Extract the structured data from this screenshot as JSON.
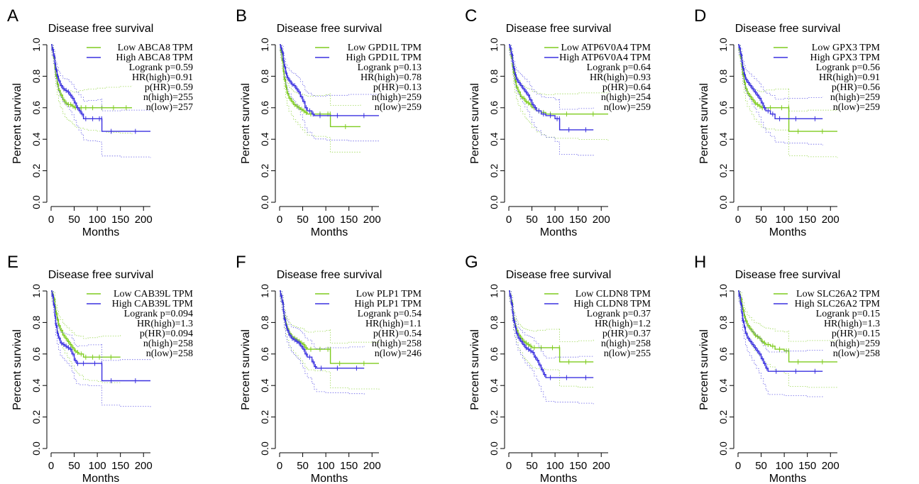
{
  "chart_data": [
    {
      "panel_label": "A",
      "type": "line",
      "title": "Disease free survival",
      "xlabel": "Months",
      "ylabel": "Percent survival",
      "xlim": [
        0,
        215
      ],
      "ylim": [
        0,
        1.0
      ],
      "x_ticks": [
        "0",
        "50",
        "100",
        "150",
        "200"
      ],
      "y_ticks": [
        "0.0",
        "0.2",
        "0.4",
        "0.6",
        "0.8",
        "1.0"
      ],
      "legend": [
        "Low ABCA8 TPM",
        "High ABCA8 TPM"
      ],
      "stats": [
        "Logrank p=0.59",
        "HR(high)=0.91",
        "p(HR)=0.59",
        "n(high)=255",
        "n(low)=257"
      ],
      "series": [
        {
          "name": "Low ABCA8 TPM",
          "color": "#7fcc1f",
          "x": [
            0,
            2,
            5,
            8,
            10,
            13,
            16,
            20,
            25,
            30,
            35,
            40,
            45,
            50,
            55,
            60,
            70,
            80,
            100,
            120,
            150,
            175
          ],
          "y": [
            1.0,
            0.97,
            0.92,
            0.85,
            0.8,
            0.75,
            0.71,
            0.68,
            0.65,
            0.63,
            0.62,
            0.62,
            0.61,
            0.6,
            0.6,
            0.6,
            0.6,
            0.6,
            0.6,
            0.6,
            0.6,
            0.6
          ]
        },
        {
          "name": "High ABCA8 TPM",
          "color": "#3a30e0",
          "x": [
            0,
            2,
            5,
            8,
            10,
            13,
            16,
            20,
            25,
            30,
            35,
            40,
            45,
            50,
            55,
            60,
            65,
            70,
            80,
            100,
            109,
            110,
            150,
            215
          ],
          "y": [
            1.0,
            0.97,
            0.93,
            0.88,
            0.84,
            0.8,
            0.77,
            0.74,
            0.72,
            0.71,
            0.7,
            0.68,
            0.66,
            0.63,
            0.6,
            0.58,
            0.56,
            0.53,
            0.53,
            0.53,
            0.53,
            0.45,
            0.45,
            0.45
          ]
        }
      ]
    },
    {
      "panel_label": "B",
      "type": "line",
      "title": "Disease free survival",
      "xlabel": "Months",
      "ylabel": "Percent survival",
      "xlim": [
        0,
        215
      ],
      "ylim": [
        0,
        1.0
      ],
      "x_ticks": [
        "0",
        "50",
        "100",
        "150",
        "200"
      ],
      "y_ticks": [
        "0.0",
        "0.2",
        "0.4",
        "0.6",
        "0.8",
        "1.0"
      ],
      "legend": [
        "Low GPD1L TPM",
        "High GPD1L TPM"
      ],
      "stats": [
        "Logrank p=0.13",
        "HR(high)=0.78",
        "p(HR)=0.13",
        "n(high)=259",
        "n(low)=259"
      ],
      "series": [
        {
          "name": "Low GPD1L TPM",
          "color": "#7fcc1f",
          "x": [
            0,
            2,
            5,
            8,
            10,
            13,
            16,
            20,
            25,
            30,
            35,
            40,
            45,
            50,
            55,
            60,
            75,
            100,
            109,
            110,
            175
          ],
          "y": [
            1.0,
            0.96,
            0.9,
            0.83,
            0.78,
            0.73,
            0.69,
            0.66,
            0.64,
            0.62,
            0.61,
            0.6,
            0.59,
            0.58,
            0.57,
            0.56,
            0.56,
            0.56,
            0.56,
            0.48,
            0.48
          ]
        },
        {
          "name": "High GPD1L TPM",
          "color": "#3a30e0",
          "x": [
            0,
            2,
            5,
            8,
            10,
            13,
            16,
            20,
            25,
            30,
            35,
            40,
            45,
            50,
            55,
            60,
            70,
            75,
            100,
            150,
            215
          ],
          "y": [
            1.0,
            0.98,
            0.95,
            0.9,
            0.86,
            0.82,
            0.79,
            0.77,
            0.75,
            0.74,
            0.72,
            0.7,
            0.67,
            0.64,
            0.6,
            0.58,
            0.56,
            0.55,
            0.55,
            0.55,
            0.55
          ]
        }
      ]
    },
    {
      "panel_label": "C",
      "type": "line",
      "title": "Disease free survival",
      "xlabel": "Months",
      "ylabel": "Percent survival",
      "xlim": [
        0,
        215
      ],
      "ylim": [
        0,
        1.0
      ],
      "x_ticks": [
        "0",
        "50",
        "100",
        "150",
        "200"
      ],
      "y_ticks": [
        "0.0",
        "0.2",
        "0.4",
        "0.6",
        "0.8",
        "1.0"
      ],
      "legend": [
        "Low ATP6V0A4 TPM",
        "High ATP6V0A4 TPM"
      ],
      "stats": [
        "Logrank p=0.64",
        "HR(high)=0.93",
        "p(HR)=0.64",
        "n(high)=254",
        "n(low)=259"
      ],
      "series": [
        {
          "name": "Low ATP6V0A4 TPM",
          "color": "#7fcc1f",
          "x": [
            0,
            2,
            5,
            8,
            10,
            13,
            16,
            20,
            25,
            30,
            35,
            40,
            45,
            50,
            60,
            70,
            80,
            100,
            150,
            215
          ],
          "y": [
            1.0,
            0.97,
            0.92,
            0.86,
            0.82,
            0.77,
            0.73,
            0.7,
            0.67,
            0.66,
            0.64,
            0.63,
            0.62,
            0.6,
            0.58,
            0.57,
            0.56,
            0.56,
            0.56,
            0.56
          ]
        },
        {
          "name": "High ATP6V0A4 TPM",
          "color": "#3a30e0",
          "x": [
            0,
            2,
            5,
            8,
            10,
            13,
            16,
            20,
            25,
            30,
            35,
            40,
            45,
            50,
            55,
            60,
            70,
            80,
            100,
            109,
            110,
            150,
            183
          ],
          "y": [
            1.0,
            0.98,
            0.94,
            0.89,
            0.85,
            0.81,
            0.78,
            0.76,
            0.74,
            0.72,
            0.7,
            0.68,
            0.65,
            0.62,
            0.6,
            0.58,
            0.56,
            0.55,
            0.53,
            0.53,
            0.46,
            0.46,
            0.46
          ]
        }
      ]
    },
    {
      "panel_label": "D",
      "type": "line",
      "title": "Disease free survival",
      "xlabel": "Months",
      "ylabel": "Percent survival",
      "xlim": [
        0,
        215
      ],
      "ylim": [
        0,
        1.0
      ],
      "x_ticks": [
        "0",
        "50",
        "100",
        "150",
        "200"
      ],
      "y_ticks": [
        "0.0",
        "0.2",
        "0.4",
        "0.6",
        "0.8",
        "1.0"
      ],
      "legend": [
        "Low GPX3 TPM",
        "High GPX3 TPM"
      ],
      "stats": [
        "Logrank p=0.56",
        "HR(high)=0.91",
        "p(HR)=0.56",
        "n(high)=259",
        "n(low)=259"
      ],
      "series": [
        {
          "name": "Low GPX3 TPM",
          "color": "#7fcc1f",
          "x": [
            0,
            2,
            5,
            8,
            10,
            13,
            16,
            20,
            25,
            30,
            35,
            40,
            45,
            50,
            55,
            60,
            80,
            109,
            110,
            150,
            215
          ],
          "y": [
            1.0,
            0.97,
            0.92,
            0.86,
            0.81,
            0.76,
            0.72,
            0.69,
            0.67,
            0.65,
            0.63,
            0.62,
            0.61,
            0.6,
            0.6,
            0.6,
            0.6,
            0.6,
            0.45,
            0.45,
            0.45
          ]
        },
        {
          "name": "High GPX3 TPM",
          "color": "#3a30e0",
          "x": [
            0,
            2,
            5,
            8,
            10,
            13,
            16,
            20,
            25,
            30,
            35,
            40,
            45,
            50,
            55,
            60,
            70,
            80,
            100,
            150,
            183
          ],
          "y": [
            1.0,
            0.98,
            0.94,
            0.89,
            0.85,
            0.81,
            0.78,
            0.76,
            0.74,
            0.72,
            0.7,
            0.68,
            0.66,
            0.63,
            0.6,
            0.58,
            0.56,
            0.53,
            0.53,
            0.53,
            0.53
          ]
        }
      ]
    },
    {
      "panel_label": "E",
      "type": "line",
      "title": "Disease free survival",
      "xlabel": "Months",
      "ylabel": "Percent survival",
      "xlim": [
        0,
        215
      ],
      "ylim": [
        0,
        1.0
      ],
      "x_ticks": [
        "0",
        "50",
        "100",
        "150",
        "200"
      ],
      "y_ticks": [
        "0.0",
        "0.2",
        "0.4",
        "0.6",
        "0.8",
        "1.0"
      ],
      "legend": [
        "Low CAB39L TPM",
        "High CAB39L TPM"
      ],
      "stats": [
        "Logrank p=0.094",
        "HR(high)=1.3",
        "p(HR)=0.094",
        "n(high)=258",
        "n(low)=258"
      ],
      "series": [
        {
          "name": "Low CAB39L TPM",
          "color": "#7fcc1f",
          "x": [
            0,
            2,
            5,
            8,
            10,
            13,
            16,
            20,
            25,
            30,
            35,
            40,
            45,
            50,
            55,
            60,
            70,
            80,
            100,
            109,
            150
          ],
          "y": [
            1.0,
            0.98,
            0.95,
            0.9,
            0.86,
            0.82,
            0.78,
            0.75,
            0.72,
            0.7,
            0.68,
            0.66,
            0.64,
            0.62,
            0.61,
            0.6,
            0.58,
            0.58,
            0.58,
            0.58,
            0.58
          ]
        },
        {
          "name": "High CAB39L TPM",
          "color": "#3a30e0",
          "x": [
            0,
            2,
            5,
            8,
            10,
            13,
            16,
            20,
            25,
            30,
            35,
            40,
            45,
            50,
            55,
            60,
            80,
            109,
            110,
            150,
            215
          ],
          "y": [
            1.0,
            0.97,
            0.91,
            0.84,
            0.78,
            0.73,
            0.7,
            0.67,
            0.66,
            0.65,
            0.64,
            0.63,
            0.6,
            0.56,
            0.54,
            0.54,
            0.54,
            0.54,
            0.43,
            0.43,
            0.43
          ]
        }
      ]
    },
    {
      "panel_label": "F",
      "type": "line",
      "title": "Disease free survival",
      "xlabel": "Months",
      "ylabel": "Percent survival",
      "xlim": [
        0,
        215
      ],
      "ylim": [
        0,
        1.0
      ],
      "x_ticks": [
        "0",
        "50",
        "100",
        "150",
        "200"
      ],
      "y_ticks": [
        "0.0",
        "0.2",
        "0.4",
        "0.6",
        "0.8",
        "1.0"
      ],
      "legend": [
        "Low PLP1 TPM",
        "High PLP1 TPM"
      ],
      "stats": [
        "Logrank p=0.54",
        "HR(high)=1.1",
        "p(HR)=0.54",
        "n(high)=258",
        "n(low)=246"
      ],
      "series": [
        {
          "name": "Low PLP1 TPM",
          "color": "#7fcc1f",
          "x": [
            0,
            2,
            5,
            8,
            10,
            13,
            16,
            20,
            25,
            30,
            35,
            40,
            45,
            50,
            55,
            60,
            75,
            100,
            109,
            110,
            150,
            215
          ],
          "y": [
            1.0,
            0.97,
            0.93,
            0.87,
            0.83,
            0.79,
            0.76,
            0.73,
            0.71,
            0.7,
            0.69,
            0.68,
            0.67,
            0.66,
            0.64,
            0.63,
            0.63,
            0.63,
            0.63,
            0.54,
            0.54,
            0.54
          ]
        },
        {
          "name": "High PLP1 TPM",
          "color": "#3a30e0",
          "x": [
            0,
            2,
            5,
            8,
            10,
            13,
            16,
            20,
            25,
            30,
            35,
            40,
            45,
            50,
            55,
            60,
            70,
            75,
            80,
            100,
            150,
            183
          ],
          "y": [
            1.0,
            0.97,
            0.93,
            0.87,
            0.82,
            0.78,
            0.75,
            0.72,
            0.7,
            0.69,
            0.68,
            0.67,
            0.65,
            0.63,
            0.6,
            0.58,
            0.55,
            0.52,
            0.51,
            0.51,
            0.51,
            0.51
          ]
        }
      ]
    },
    {
      "panel_label": "G",
      "type": "line",
      "title": "Disease free survival",
      "xlabel": "Months",
      "ylabel": "Percent survival",
      "xlim": [
        0,
        215
      ],
      "ylim": [
        0,
        1.0
      ],
      "x_ticks": [
        "0",
        "50",
        "100",
        "150",
        "200"
      ],
      "y_ticks": [
        "0.0",
        "0.2",
        "0.4",
        "0.6",
        "0.8",
        "1.0"
      ],
      "legend": [
        "Low CLDN8 TPM",
        "High CLDN8 TPM"
      ],
      "stats": [
        "Logrank p=0.37",
        "HR(high)=1.2",
        "p(HR)=0.37",
        "n(high)=258",
        "n(low)=255"
      ],
      "series": [
        {
          "name": "Low CLDN8 TPM",
          "color": "#7fcc1f",
          "x": [
            0,
            2,
            5,
            8,
            10,
            13,
            16,
            20,
            25,
            30,
            35,
            40,
            45,
            50,
            60,
            80,
            109,
            110,
            150,
            183
          ],
          "y": [
            1.0,
            0.97,
            0.93,
            0.87,
            0.82,
            0.78,
            0.75,
            0.72,
            0.7,
            0.68,
            0.67,
            0.66,
            0.65,
            0.64,
            0.64,
            0.64,
            0.64,
            0.55,
            0.55,
            0.55
          ]
        },
        {
          "name": "High CLDN8 TPM",
          "color": "#3a30e0",
          "x": [
            0,
            2,
            5,
            8,
            10,
            13,
            16,
            20,
            25,
            30,
            35,
            40,
            45,
            50,
            55,
            60,
            65,
            70,
            75,
            80,
            100,
            150,
            183
          ],
          "y": [
            1.0,
            0.97,
            0.92,
            0.86,
            0.81,
            0.77,
            0.73,
            0.7,
            0.68,
            0.66,
            0.64,
            0.63,
            0.62,
            0.61,
            0.58,
            0.56,
            0.53,
            0.5,
            0.47,
            0.45,
            0.45,
            0.45,
            0.45
          ]
        }
      ]
    },
    {
      "panel_label": "H",
      "type": "line",
      "title": "Disease free survival",
      "xlabel": "Months",
      "ylabel": "Percent survival",
      "xlim": [
        0,
        215
      ],
      "ylim": [
        0,
        1.0
      ],
      "x_ticks": [
        "0",
        "50",
        "100",
        "150",
        "200"
      ],
      "y_ticks": [
        "0.0",
        "0.2",
        "0.4",
        "0.6",
        "0.8",
        "1.0"
      ],
      "legend": [
        "Low SLC26A2 TPM",
        "High SLC26A2 TPM"
      ],
      "stats": [
        "Logrank p=0.15",
        "HR(high)=1.3",
        "p(HR)=0.15",
        "n(high)=259",
        "n(low)=258"
      ],
      "series": [
        {
          "name": "Low SLC26A2 TPM",
          "color": "#7fcc1f",
          "x": [
            0,
            2,
            5,
            8,
            10,
            13,
            16,
            20,
            25,
            30,
            35,
            40,
            45,
            50,
            55,
            60,
            70,
            80,
            100,
            109,
            110,
            150,
            215
          ],
          "y": [
            1.0,
            0.98,
            0.95,
            0.91,
            0.88,
            0.84,
            0.81,
            0.78,
            0.76,
            0.74,
            0.72,
            0.71,
            0.7,
            0.68,
            0.67,
            0.66,
            0.65,
            0.63,
            0.62,
            0.62,
            0.55,
            0.55,
            0.55
          ]
        },
        {
          "name": "High SLC26A2 TPM",
          "color": "#3a30e0",
          "x": [
            0,
            2,
            5,
            8,
            10,
            13,
            16,
            20,
            25,
            30,
            35,
            40,
            45,
            50,
            55,
            60,
            65,
            100,
            150,
            183
          ],
          "y": [
            1.0,
            0.97,
            0.92,
            0.86,
            0.81,
            0.77,
            0.73,
            0.7,
            0.68,
            0.66,
            0.64,
            0.62,
            0.6,
            0.57,
            0.54,
            0.51,
            0.49,
            0.49,
            0.49,
            0.49
          ]
        }
      ]
    }
  ]
}
